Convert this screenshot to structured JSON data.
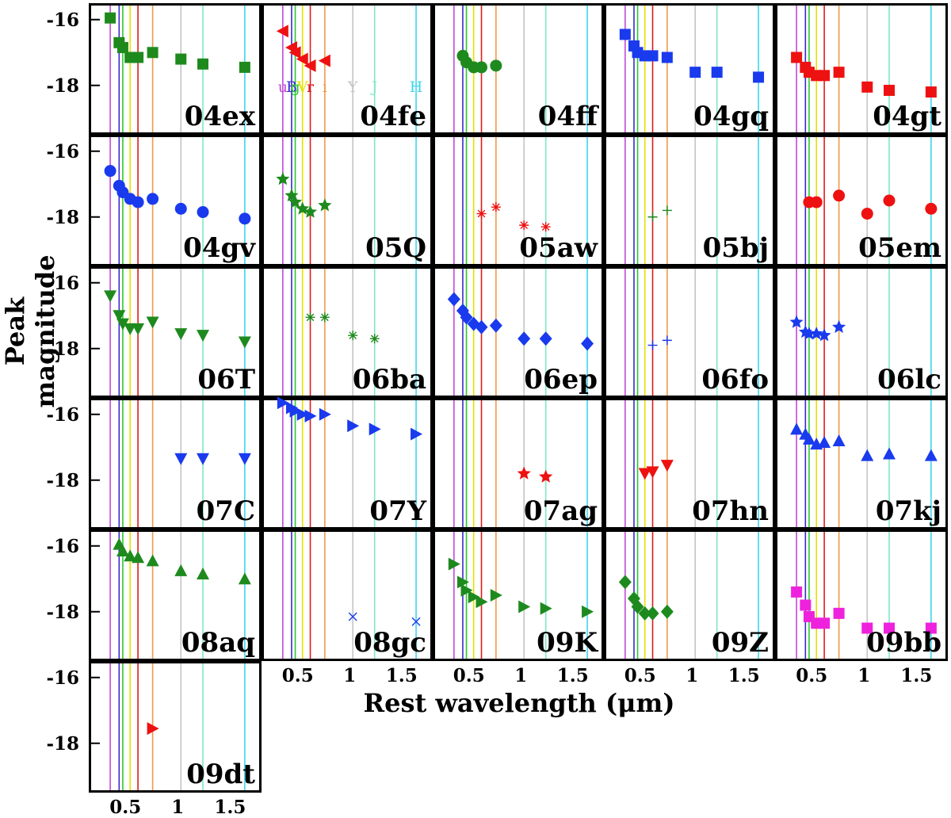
{
  "chart_data": {
    "type": "scatter",
    "ylabel": "Peak magnitude",
    "xlabel": "Rest wavelength (μm)",
    "ylim": [
      -15.5,
      -19.5
    ],
    "xlim": [
      0.15,
      1.8
    ],
    "yticks": [
      -16,
      -18
    ],
    "xticks": [
      0.5,
      1,
      1.5
    ],
    "ytick_labels": [
      "-16",
      "-18"
    ],
    "xtick_labels": [
      "0.5",
      "1",
      "1.5"
    ],
    "grid": false,
    "filter_lines": [
      {
        "label": "u",
        "x": 0.355,
        "color": "#c04ad8"
      },
      {
        "label": "B",
        "x": 0.44,
        "color": "#3a2ad0"
      },
      {
        "label": "g",
        "x": 0.475,
        "color": "#29c92f"
      },
      {
        "label": "V",
        "x": 0.545,
        "color": "#e4e000"
      },
      {
        "label": "r",
        "x": 0.62,
        "color": "#e21a1a"
      },
      {
        "label": "i",
        "x": 0.76,
        "color": "#ef9a4a"
      },
      {
        "label": "Y",
        "x": 1.03,
        "color": "#c4c4c4"
      },
      {
        "label": "J",
        "x": 1.24,
        "color": "#7fe8c4"
      },
      {
        "label": "H",
        "x": 1.64,
        "color": "#3fd6ea"
      }
    ],
    "panels": [
      {
        "name": "04ex",
        "marker": "square",
        "color": "#1e8a1e",
        "x": [
          0.355,
          0.44,
          0.475,
          0.545,
          0.62,
          0.76,
          1.03,
          1.24,
          1.64
        ],
        "y": [
          -15.95,
          -16.7,
          -16.85,
          -17.15,
          -17.15,
          -17.0,
          -17.2,
          -17.35,
          -17.45
        ]
      },
      {
        "name": "04fe",
        "marker": "tri-left",
        "color": "#ee1111",
        "x": [
          0.355,
          0.44,
          0.475,
          0.545,
          0.62,
          0.76
        ],
        "y": [
          -16.35,
          -16.85,
          -17.0,
          -17.2,
          -17.4,
          -17.25
        ]
      },
      {
        "name": "04ff",
        "marker": "circle",
        "color": "#1e8a1e",
        "x": [
          0.44,
          0.475,
          0.545,
          0.62,
          0.76
        ],
        "y": [
          -17.1,
          -17.3,
          -17.45,
          -17.45,
          -17.4
        ]
      },
      {
        "name": "04gq",
        "marker": "square",
        "color": "#1a3aee",
        "x": [
          0.355,
          0.44,
          0.475,
          0.545,
          0.62,
          0.76,
          1.03,
          1.24,
          1.64
        ],
        "y": [
          -16.45,
          -16.8,
          -17.0,
          -17.1,
          -17.1,
          -17.15,
          -17.6,
          -17.6,
          -17.75
        ]
      },
      {
        "name": "04gt",
        "marker": "square",
        "color": "#ee1111",
        "x": [
          0.355,
          0.44,
          0.475,
          0.545,
          0.62,
          0.76,
          1.03,
          1.24,
          1.64
        ],
        "y": [
          -17.15,
          -17.45,
          -17.6,
          -17.7,
          -17.7,
          -17.6,
          -18.05,
          -18.15,
          -18.2
        ]
      },
      {
        "name": "04gv",
        "marker": "circle",
        "color": "#1a3aee",
        "x": [
          0.355,
          0.44,
          0.475,
          0.545,
          0.62,
          0.76,
          1.03,
          1.24,
          1.64
        ],
        "y": [
          -16.6,
          -17.05,
          -17.25,
          -17.45,
          -17.55,
          -17.45,
          -17.75,
          -17.85,
          -18.05
        ]
      },
      {
        "name": "05Q",
        "marker": "star",
        "color": "#1e8a1e",
        "x": [
          0.355,
          0.44,
          0.475,
          0.545,
          0.62,
          0.76
        ],
        "y": [
          -16.85,
          -17.35,
          -17.55,
          -17.75,
          -17.85,
          -17.65
        ]
      },
      {
        "name": "05aw",
        "marker": "asterisk",
        "color": "#ee1111",
        "x": [
          0.62,
          0.76,
          1.03,
          1.24
        ],
        "y": [
          -17.9,
          -17.7,
          -18.25,
          -18.3
        ]
      },
      {
        "name": "05bj",
        "marker": "plus",
        "color": "#1e8a1e",
        "x": [
          0.62,
          0.76
        ],
        "y": [
          -18.0,
          -17.8
        ]
      },
      {
        "name": "05em",
        "marker": "circle",
        "color": "#ee1111",
        "x": [
          0.475,
          0.545,
          0.76,
          1.03,
          1.24,
          1.64
        ],
        "y": [
          -17.55,
          -17.55,
          -17.35,
          -17.9,
          -17.5,
          -17.75
        ]
      },
      {
        "name": "06T",
        "marker": "tri-down",
        "color": "#1e8a1e",
        "x": [
          0.355,
          0.44,
          0.475,
          0.545,
          0.62,
          0.76,
          1.03,
          1.24,
          1.64
        ],
        "y": [
          -16.4,
          -17.0,
          -17.25,
          -17.4,
          -17.4,
          -17.2,
          -17.55,
          -17.6,
          -17.8
        ]
      },
      {
        "name": "06ba",
        "marker": "asterisk",
        "color": "#1e8a1e",
        "x": [
          0.62,
          0.76,
          1.03,
          1.24
        ],
        "y": [
          -17.05,
          -17.05,
          -17.6,
          -17.7
        ]
      },
      {
        "name": "06ep",
        "marker": "diamond",
        "color": "#1a3aee",
        "x": [
          0.355,
          0.44,
          0.475,
          0.545,
          0.62,
          0.76,
          1.03,
          1.24,
          1.64
        ],
        "y": [
          -16.5,
          -16.85,
          -17.05,
          -17.25,
          -17.35,
          -17.3,
          -17.7,
          -17.7,
          -17.85
        ]
      },
      {
        "name": "06fo",
        "marker": "plus",
        "color": "#1a3aee",
        "x": [
          0.62,
          0.76
        ],
        "y": [
          -17.9,
          -17.75
        ]
      },
      {
        "name": "06lc",
        "marker": "star",
        "color": "#1a3aee",
        "x": [
          0.355,
          0.44,
          0.475,
          0.545,
          0.62,
          0.76
        ],
        "y": [
          -17.2,
          -17.5,
          -17.55,
          -17.55,
          -17.6,
          -17.35
        ]
      },
      {
        "name": "07C",
        "marker": "tri-down",
        "color": "#1a3aee",
        "x": [
          1.03,
          1.24,
          1.64
        ],
        "y": [
          -17.35,
          -17.35,
          -17.35
        ]
      },
      {
        "name": "07Y",
        "marker": "tri-right",
        "color": "#1a3aee",
        "x": [
          0.355,
          0.44,
          0.475,
          0.545,
          0.62,
          0.76,
          1.03,
          1.24,
          1.64
        ],
        "y": [
          -15.65,
          -15.8,
          -15.9,
          -16.0,
          -16.05,
          -16.0,
          -16.35,
          -16.45,
          -16.6
        ]
      },
      {
        "name": "07ag",
        "marker": "star",
        "color": "#ee1111",
        "x": [
          1.03,
          1.24
        ],
        "y": [
          -17.8,
          -17.9
        ]
      },
      {
        "name": "07hn",
        "marker": "tri-down",
        "color": "#ee1111",
        "x": [
          0.545,
          0.62,
          0.76
        ],
        "y": [
          -17.8,
          -17.75,
          -17.55
        ]
      },
      {
        "name": "07kj",
        "marker": "tri-up",
        "color": "#1a3aee",
        "x": [
          0.355,
          0.44,
          0.475,
          0.545,
          0.62,
          0.76,
          1.03,
          1.24,
          1.64
        ],
        "y": [
          -16.45,
          -16.6,
          -16.75,
          -16.9,
          -16.85,
          -16.8,
          -17.25,
          -17.2,
          -17.25
        ]
      },
      {
        "name": "08aq",
        "marker": "tri-up",
        "color": "#1e8a1e",
        "x": [
          0.44,
          0.475,
          0.545,
          0.62,
          0.76,
          1.03,
          1.24,
          1.64
        ],
        "y": [
          -15.95,
          -16.15,
          -16.3,
          -16.35,
          -16.45,
          -16.75,
          -16.85,
          -17.0
        ]
      },
      {
        "name": "08gc",
        "marker": "cross",
        "color": "#1a3aee",
        "x": [
          1.03,
          1.64
        ],
        "y": [
          -18.15,
          -18.3
        ]
      },
      {
        "name": "09K",
        "marker": "tri-right",
        "color": "#1e8a1e",
        "x": [
          0.355,
          0.44,
          0.475,
          0.545,
          0.62,
          0.76,
          1.03,
          1.24,
          1.64
        ],
        "y": [
          -16.55,
          -17.1,
          -17.35,
          -17.55,
          -17.7,
          -17.5,
          -17.85,
          -17.9,
          -18.0
        ]
      },
      {
        "name": "09Z",
        "marker": "diamond",
        "color": "#1e8a1e",
        "x": [
          0.355,
          0.44,
          0.475,
          0.545,
          0.62,
          0.76
        ],
        "y": [
          -17.1,
          -17.6,
          -17.85,
          -18.05,
          -18.05,
          -18.0
        ]
      },
      {
        "name": "09bb",
        "marker": "square",
        "color": "#ee22dd",
        "x": [
          0.355,
          0.44,
          0.475,
          0.545,
          0.62,
          0.76,
          1.03,
          1.24,
          1.64
        ],
        "y": [
          -17.4,
          -17.8,
          -18.15,
          -18.35,
          -18.35,
          -18.05,
          -18.5,
          -18.5,
          -18.5
        ]
      },
      {
        "name": "09dt",
        "marker": "tri-right",
        "color": "#ee1111",
        "x": [
          0.76
        ],
        "y": [
          -17.55
        ]
      }
    ]
  }
}
